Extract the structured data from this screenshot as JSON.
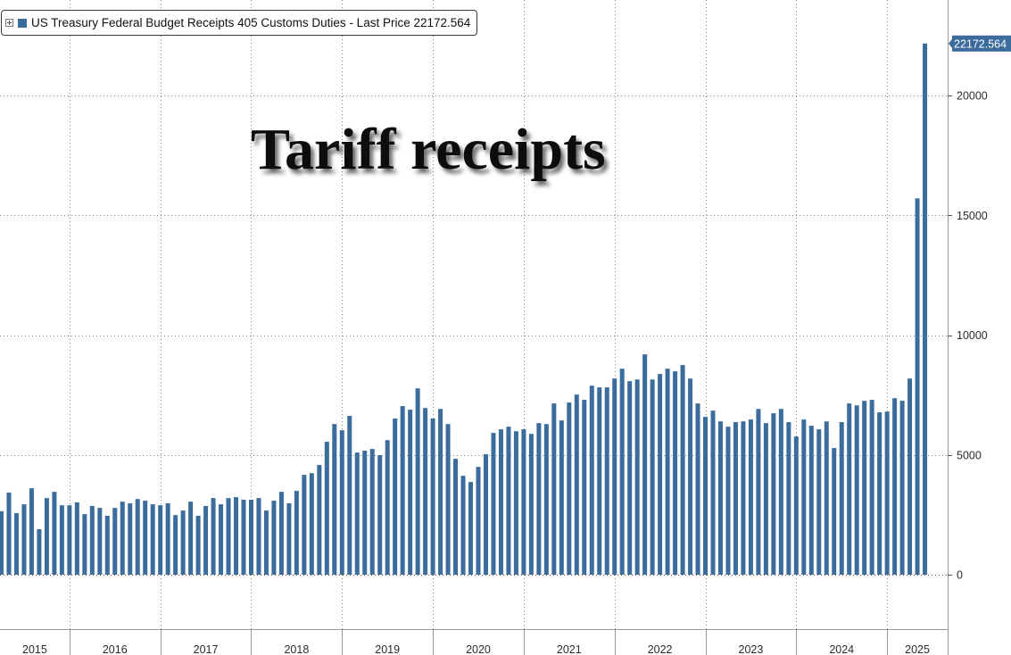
{
  "legend": {
    "toggle_icon": "expand-plus-icon"
  },
  "colors": {
    "background": "#ffffff",
    "bar": "#3b6c9b",
    "last_price_tag": "#3b6c9b",
    "gridline": "#808080",
    "axis": "#9a9a9a"
  },
  "chart_data": {
    "type": "bar",
    "title": "Tariff receipts",
    "series": [
      {
        "name": "US Treasury Federal Budget Receipts 405 Customs Duties",
        "color": "#3b6c9b",
        "values": [
          2650,
          3430,
          2570,
          2940,
          3610,
          1900,
          3200,
          3460,
          2900,
          2900,
          3020,
          2530,
          2870,
          2790,
          2460,
          2790,
          3050,
          2980,
          3160,
          3090,
          2940,
          2900,
          2980,
          2490,
          2680,
          3050,
          2460,
          2870,
          3200,
          2940,
          3200,
          3240,
          3130,
          3130,
          3200,
          2680,
          3090,
          3460,
          2980,
          3500,
          4170,
          4240,
          4580,
          5550,
          6290,
          6030,
          6630,
          5100,
          5180,
          5250,
          4990,
          5620,
          6520,
          7040,
          6890,
          7780,
          6960,
          6520,
          6920,
          6290,
          4840,
          4130,
          3870,
          4500,
          5030,
          5920,
          6070,
          6180,
          5990,
          6070,
          5880,
          6330,
          6290,
          7150,
          6440,
          7190,
          7520,
          7300,
          7890,
          7820,
          7820,
          8190,
          8600,
          8080,
          8150,
          9200,
          8150,
          8380,
          8600,
          8490,
          8750,
          8190,
          7150,
          6590,
          6850,
          6400,
          6180,
          6370,
          6400,
          6480,
          6920,
          6330,
          6740,
          6920,
          6370,
          5770,
          6480,
          6220,
          6070,
          6400,
          5290,
          6370,
          7150,
          7070,
          7260,
          7300,
          6780,
          6810,
          7370,
          7260,
          8190,
          15710,
          22172.564
        ]
      }
    ],
    "x": [
      "2015-03",
      "2015-04",
      "2015-05",
      "2015-06",
      "2015-07",
      "2015-08",
      "2015-09",
      "2015-10",
      "2015-11",
      "2015-12",
      "2016-01",
      "2016-02",
      "2016-03",
      "2016-04",
      "2016-05",
      "2016-06",
      "2016-07",
      "2016-08",
      "2016-09",
      "2016-10",
      "2016-11",
      "2016-12",
      "2017-01",
      "2017-02",
      "2017-03",
      "2017-04",
      "2017-05",
      "2017-06",
      "2017-07",
      "2017-08",
      "2017-09",
      "2017-10",
      "2017-11",
      "2017-12",
      "2018-01",
      "2018-02",
      "2018-03",
      "2018-04",
      "2018-05",
      "2018-06",
      "2018-07",
      "2018-08",
      "2018-09",
      "2018-10",
      "2018-11",
      "2018-12",
      "2019-01",
      "2019-02",
      "2019-03",
      "2019-04",
      "2019-05",
      "2019-06",
      "2019-07",
      "2019-08",
      "2019-09",
      "2019-10",
      "2019-11",
      "2019-12",
      "2020-01",
      "2020-02",
      "2020-03",
      "2020-04",
      "2020-05",
      "2020-06",
      "2020-07",
      "2020-08",
      "2020-09",
      "2020-10",
      "2020-11",
      "2020-12",
      "2021-01",
      "2021-02",
      "2021-03",
      "2021-04",
      "2021-05",
      "2021-06",
      "2021-07",
      "2021-08",
      "2021-09",
      "2021-10",
      "2021-11",
      "2021-12",
      "2022-01",
      "2022-02",
      "2022-03",
      "2022-04",
      "2022-05",
      "2022-06",
      "2022-07",
      "2022-08",
      "2022-09",
      "2022-10",
      "2022-11",
      "2022-12",
      "2023-01",
      "2023-02",
      "2023-03",
      "2023-04",
      "2023-05",
      "2023-06",
      "2023-07",
      "2023-08",
      "2023-09",
      "2023-10",
      "2023-11",
      "2023-12",
      "2024-01",
      "2024-02",
      "2024-03",
      "2024-04",
      "2024-05",
      "2024-06",
      "2024-07",
      "2024-08",
      "2024-09",
      "2024-10",
      "2024-11",
      "2024-12",
      "2025-01",
      "2025-02",
      "2025-03",
      "2025-04",
      "2025-05"
    ],
    "legend_suffix": "- Last Price",
    "last_price": "22172.564",
    "x_tick_labels": [
      "2015",
      "2016",
      "2017",
      "2018",
      "2019",
      "2020",
      "2021",
      "2022",
      "2023",
      "2024",
      "2025"
    ],
    "y_ticks": [
      0,
      5000,
      10000,
      15000,
      20000
    ],
    "ylim": [
      -2270,
      23990
    ],
    "xlim": [
      "2015-03-26",
      "2025-09-01"
    ],
    "y_axis_side": "right",
    "grid": true,
    "legend_position": "top-left"
  }
}
